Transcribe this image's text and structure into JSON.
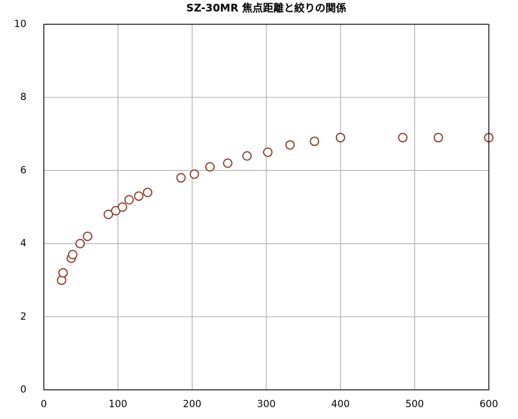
{
  "chart_data": {
    "type": "scatter",
    "title": "SZ-30MR 焦点距離と絞りの関係",
    "series": [
      {
        "color": "#8b2e16",
        "x": [
          24,
          26,
          37,
          39,
          49,
          59,
          87,
          97,
          106,
          115,
          128,
          140,
          185,
          203,
          224,
          248,
          274,
          302,
          332,
          365,
          400,
          484,
          532,
          600
        ],
        "values": [
          3.0,
          3.2,
          3.6,
          3.7,
          4.0,
          4.2,
          4.8,
          4.9,
          5.0,
          5.2,
          5.3,
          5.4,
          5.8,
          5.9,
          6.1,
          6.2,
          6.4,
          6.5,
          6.7,
          6.8,
          6.9,
          6.9,
          6.9,
          6.9
        ]
      }
    ],
    "xlim": [
      0,
      600
    ],
    "xticks": [
      0,
      100,
      200,
      300,
      400,
      500,
      600
    ],
    "ylim": [
      0,
      10
    ],
    "yticks": [
      0,
      2,
      4,
      6,
      8,
      10
    ],
    "grid": true,
    "grid_color": "#b3b3b3"
  }
}
